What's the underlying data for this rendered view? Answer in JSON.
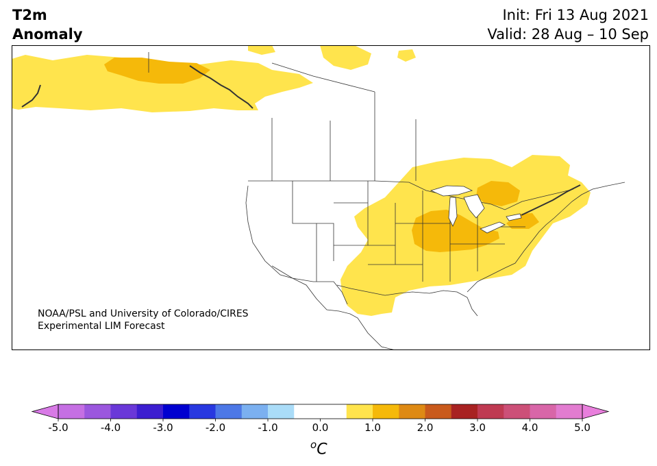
{
  "header": {
    "title_line1": "T2m",
    "title_line2": "Anomaly",
    "init": "Init: Fri 13 Aug 2021",
    "valid": "Valid: 28 Aug – 10 Sep"
  },
  "credit": {
    "line1": "NOAA/PSL and University of Colorado/CIRES",
    "line2": "Experimental LIM Forecast"
  },
  "map": {
    "region": "North America",
    "variable": "2 m temperature anomaly",
    "land_color": "#ffffff",
    "border_color": "#333333",
    "anomaly_regions": [
      {
        "area": "Alaska / Yukon / NW Canada",
        "value_range": [
          0.5,
          1.0
        ],
        "color": "#ffe44d"
      },
      {
        "area": "Northern Yukon / NW Territories core",
        "value_range": [
          1.0,
          1.5
        ],
        "color": "#f5b90a"
      },
      {
        "area": "Eastern Canadian Arctic islands",
        "value_range": [
          0.5,
          1.0
        ],
        "color": "#ffe44d"
      },
      {
        "area": "Central & Eastern US, Ontario, Quebec",
        "value_range": [
          0.5,
          1.0
        ],
        "color": "#ffe44d"
      },
      {
        "area": "Midwest / Great Lakes / Ohio Valley core",
        "value_range": [
          1.0,
          1.5
        ],
        "color": "#f5b90a"
      },
      {
        "area": "Northern Ontario patch",
        "value_range": [
          1.0,
          1.5
        ],
        "color": "#f5b90a"
      },
      {
        "area": "Southern Ontario / New York patch",
        "value_range": [
          1.0,
          1.5
        ],
        "color": "#f5b90a"
      }
    ]
  },
  "colorbar": {
    "unit_base": "C",
    "unit_sup": "o",
    "ticks": [
      "-5.0",
      "-4.0",
      "-3.0",
      "-2.0",
      "-1.0",
      "0.0",
      "1.0",
      "2.0",
      "3.0",
      "4.0",
      "5.0"
    ],
    "tick_values": [
      -5,
      -4,
      -3,
      -2,
      -1,
      0,
      1,
      2,
      3,
      4,
      5
    ],
    "under_color": "#d87ae6",
    "over_color": "#e87fdc",
    "bins": [
      {
        "from": -5.0,
        "to": -4.5,
        "color": "#c56fe3"
      },
      {
        "from": -4.5,
        "to": -4.0,
        "color": "#9b57de"
      },
      {
        "from": -4.0,
        "to": -3.5,
        "color": "#6a38d8"
      },
      {
        "from": -3.5,
        "to": -3.0,
        "color": "#3c1ed0"
      },
      {
        "from": -3.0,
        "to": -2.5,
        "color": "#0000d0"
      },
      {
        "from": -2.5,
        "to": -2.0,
        "color": "#2838e0"
      },
      {
        "from": -2.0,
        "to": -1.5,
        "color": "#4d78e6"
      },
      {
        "from": -1.5,
        "to": -1.0,
        "color": "#7bb0f0"
      },
      {
        "from": -1.0,
        "to": -0.5,
        "color": "#aadcf8"
      },
      {
        "from": -0.5,
        "to": 0.0,
        "color": "#ffffff"
      },
      {
        "from": 0.0,
        "to": 0.5,
        "color": "#ffffff"
      },
      {
        "from": 0.5,
        "to": 1.0,
        "color": "#ffe44d"
      },
      {
        "from": 1.0,
        "to": 1.5,
        "color": "#f5b90a"
      },
      {
        "from": 1.5,
        "to": 2.0,
        "color": "#de8a14"
      },
      {
        "from": 2.0,
        "to": 2.5,
        "color": "#c95a1c"
      },
      {
        "from": 2.5,
        "to": 3.0,
        "color": "#a82222"
      },
      {
        "from": 3.0,
        "to": 3.5,
        "color": "#bf3a52"
      },
      {
        "from": 3.5,
        "to": 4.0,
        "color": "#cc5078"
      },
      {
        "from": 4.0,
        "to": 4.5,
        "color": "#d866a8"
      },
      {
        "from": 4.5,
        "to": 5.0,
        "color": "#e27cd0"
      }
    ]
  }
}
